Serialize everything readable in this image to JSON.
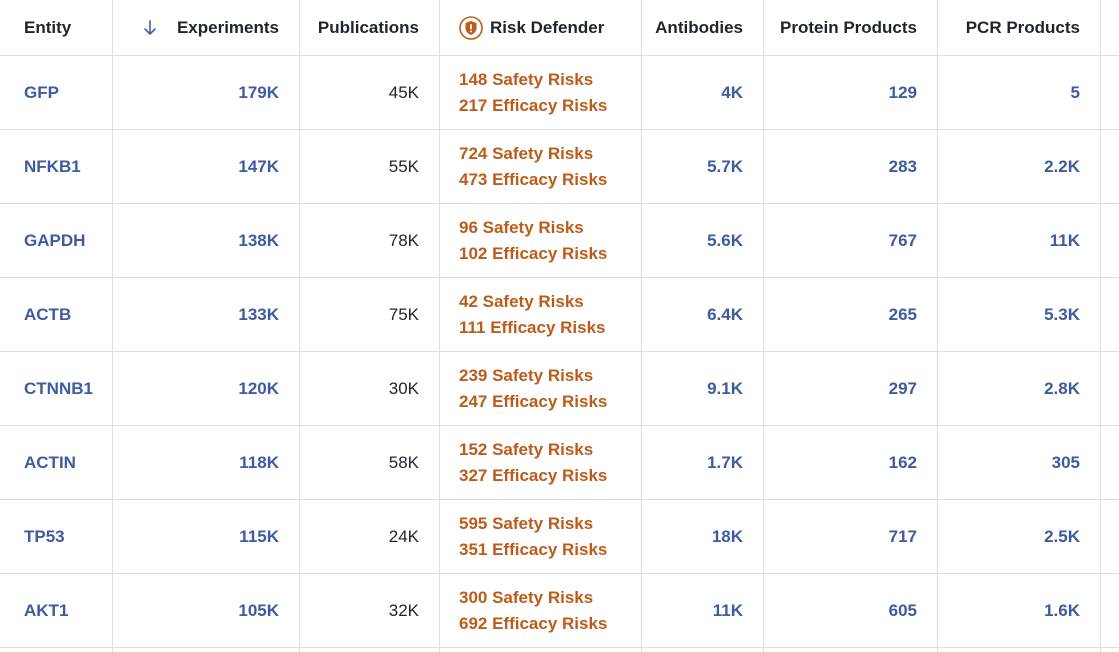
{
  "columns": {
    "entity": "Entity",
    "experiments": "Experiments",
    "publications": "Publications",
    "risk_defender": "Risk Defender",
    "antibodies": "Antibodies",
    "protein_products": "Protein Products",
    "pcr_products": "PCR Products"
  },
  "icons": {
    "sort": "arrow-down-icon",
    "risk": "shield-alert-icon"
  },
  "colors": {
    "link": "#3f5aa0",
    "risk": "#bd5b1a",
    "text": "#1f2430",
    "border": "#dcdfe3"
  },
  "sort": {
    "column": "experiments",
    "direction": "descending"
  },
  "rows": [
    {
      "entity": "GFP",
      "experiments": "179K",
      "publications": "45K",
      "safety": "148 Safety Risks",
      "efficacy": "217 Efficacy Risks",
      "antibodies": "4K",
      "protein_products": "129",
      "pcr_products": "5"
    },
    {
      "entity": "NFKB1",
      "experiments": "147K",
      "publications": "55K",
      "safety": "724 Safety Risks",
      "efficacy": "473 Efficacy Risks",
      "antibodies": "5.7K",
      "protein_products": "283",
      "pcr_products": "2.2K"
    },
    {
      "entity": "GAPDH",
      "experiments": "138K",
      "publications": "78K",
      "safety": "96 Safety Risks",
      "efficacy": "102 Efficacy Risks",
      "antibodies": "5.6K",
      "protein_products": "767",
      "pcr_products": "11K"
    },
    {
      "entity": "ACTB",
      "experiments": "133K",
      "publications": "75K",
      "safety": "42 Safety Risks",
      "efficacy": "111 Efficacy Risks",
      "antibodies": "6.4K",
      "protein_products": "265",
      "pcr_products": "5.3K"
    },
    {
      "entity": "CTNNB1",
      "experiments": "120K",
      "publications": "30K",
      "safety": "239 Safety Risks",
      "efficacy": "247 Efficacy Risks",
      "antibodies": "9.1K",
      "protein_products": "297",
      "pcr_products": "2.8K"
    },
    {
      "entity": "ACTIN",
      "experiments": "118K",
      "publications": "58K",
      "safety": "152 Safety Risks",
      "efficacy": "327 Efficacy Risks",
      "antibodies": "1.7K",
      "protein_products": "162",
      "pcr_products": "305"
    },
    {
      "entity": "TP53",
      "experiments": "115K",
      "publications": "24K",
      "safety": "595 Safety Risks",
      "efficacy": "351 Efficacy Risks",
      "antibodies": "18K",
      "protein_products": "717",
      "pcr_products": "2.5K"
    },
    {
      "entity": "AKT1",
      "experiments": "105K",
      "publications": "32K",
      "safety": "300 Safety Risks",
      "efficacy": "692 Efficacy Risks",
      "antibodies": "11K",
      "protein_products": "605",
      "pcr_products": "1.6K"
    }
  ]
}
